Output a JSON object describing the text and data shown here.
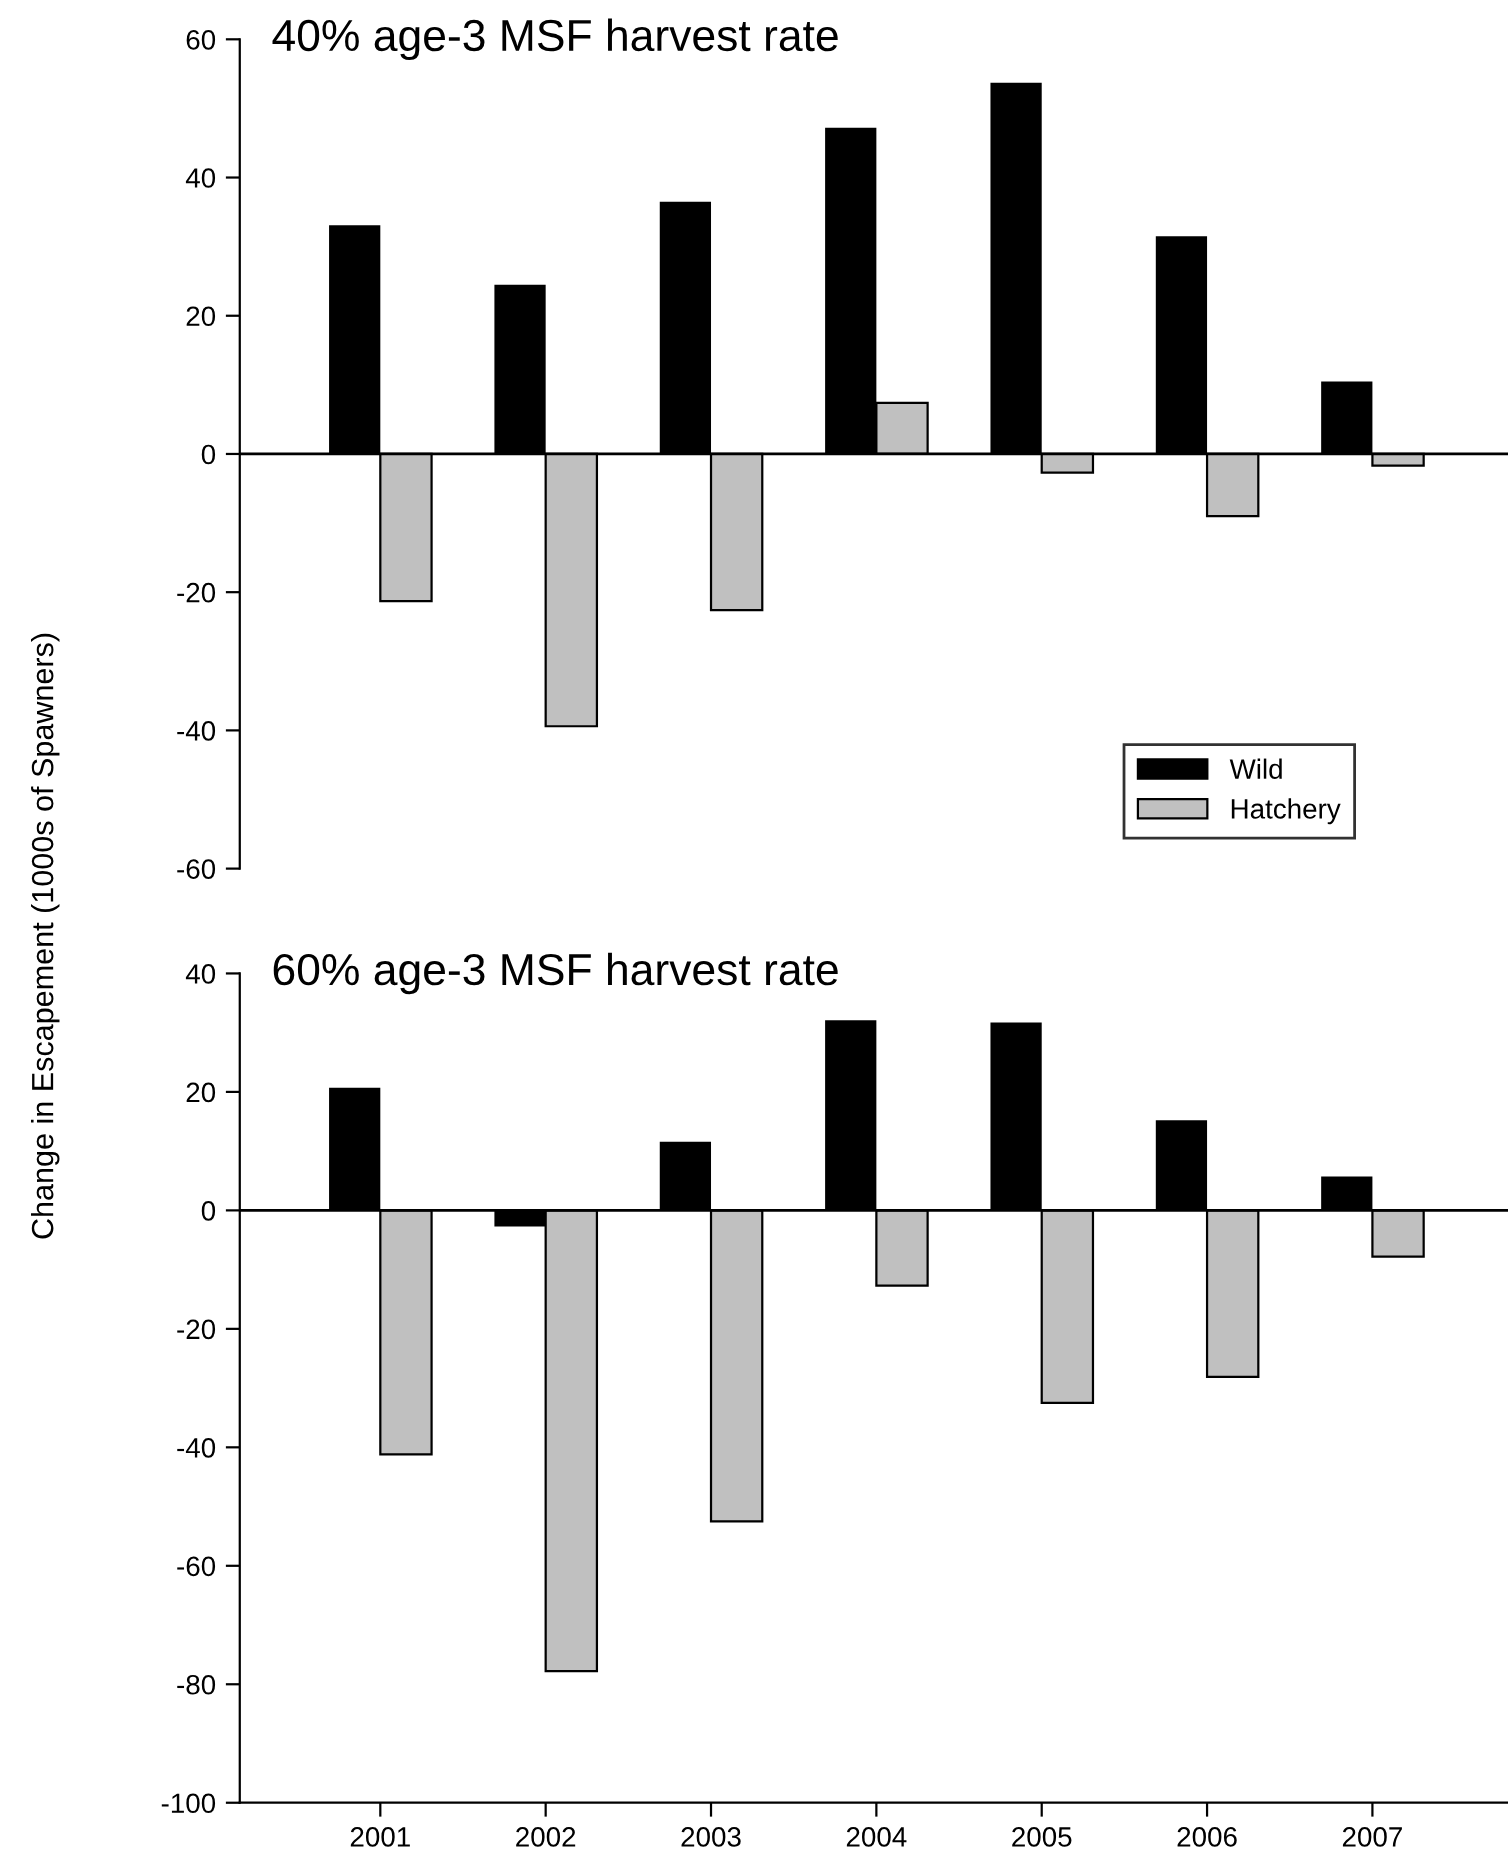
{
  "chart_data": [
    {
      "type": "bar",
      "title": "40% age-3 MSF harvest rate",
      "ylabel": "Change in Escapement (1000s of Spawners)",
      "categories": [
        "2001",
        "2002",
        "2003",
        "2004",
        "2005",
        "2006",
        "2007"
      ],
      "series": [
        {
          "name": "Wild",
          "color": "#000000",
          "values": [
            33.1,
            24.5,
            36.5,
            47.2,
            53.7,
            31.5,
            10.5
          ]
        },
        {
          "name": "Hatchery",
          "color": "#c0c0c0",
          "values": [
            -21.3,
            -39.4,
            -22.6,
            7.4,
            -2.7,
            -9.0,
            -1.7
          ]
        }
      ],
      "ylim": [
        -60,
        60
      ],
      "yticks": [
        -60,
        -40,
        -20,
        0,
        20,
        40,
        60
      ],
      "ref_lines": [
        {
          "axis": "y",
          "value": 0
        }
      ],
      "tick_labels": "y",
      "legend": "bottom right",
      "grid": false
    },
    {
      "type": "bar",
      "title": "60% age-3 MSF harvest rate",
      "categories": [
        "2001",
        "2002",
        "2003",
        "2004",
        "2005",
        "2006",
        "2007"
      ],
      "series": [
        {
          "color": "#000000",
          "values": [
            20.7,
            -2.7,
            11.6,
            32.1,
            31.7,
            15.2,
            5.7
          ]
        },
        {
          "color": "#c0c0c0",
          "values": [
            -41.2,
            -77.8,
            -52.5,
            -12.7,
            -32.5,
            -28.1,
            -7.8
          ]
        }
      ],
      "ylim": [
        -100,
        40
      ],
      "yticks": [
        -100,
        -80,
        -60,
        -40,
        -20,
        0,
        20,
        40
      ],
      "ref_lines": [
        {
          "axis": "y",
          "value": 0
        }
      ],
      "legend": false,
      "grid": false
    }
  ]
}
